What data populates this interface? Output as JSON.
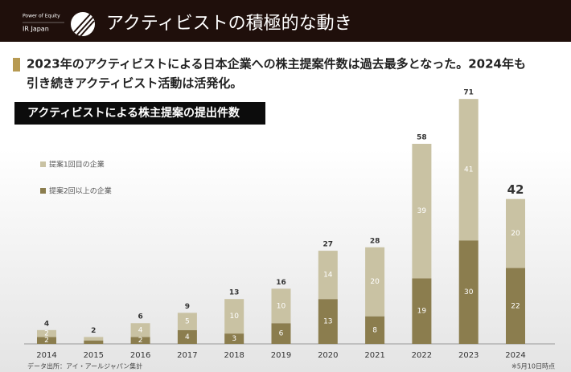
{
  "header": {
    "brand_top": "Power of Equity",
    "brand_bottom": "IR Japan",
    "title": "アクティビストの積極的な動き"
  },
  "headline": [
    "2023年のアクティビストによる日本企業への株主提案件数は過去最多となった。2024年も",
    "引き続きアクティビスト活動は活発化。"
  ],
  "chart_data": {
    "type": "stacked_bar",
    "title": "アクティビストによる株主提案の提出件数",
    "categories": [
      "2014",
      "2015",
      "2016",
      "2017",
      "2018",
      "2019",
      "2020",
      "2021",
      "2022",
      "2023",
      "2024"
    ],
    "series": [
      {
        "name": "提案2回以上の企業",
        "color": "#8b7d4e",
        "values": [
          2,
          1,
          2,
          4,
          3,
          6,
          13,
          8,
          19,
          30,
          22
        ]
      },
      {
        "name": "提案1回目の企業",
        "color": "#c9c2a3",
        "values": [
          2,
          1,
          4,
          5,
          10,
          10,
          14,
          20,
          39,
          41,
          20
        ]
      }
    ],
    "totals": [
      4,
      2,
      6,
      9,
      13,
      16,
      27,
      28,
      58,
      71,
      42
    ],
    "ylim": [
      0,
      75
    ],
    "source": "データ出所：アイ・アールジャパン集計",
    "note": "※5月10日時点"
  }
}
